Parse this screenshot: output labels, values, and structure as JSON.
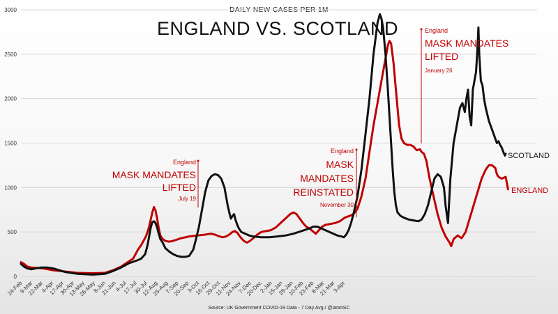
{
  "chart_data": {
    "type": "line",
    "subtitle": "DAILY NEW CASES PER 1M",
    "title": "ENGLAND VS. SCOTLAND",
    "source": "Source: UK Government COVID-19 Data - 7 Day Avg./ @ianmSC",
    "ylim": [
      0,
      3000
    ],
    "yticks": [
      "0",
      "500",
      "1000",
      "1500",
      "2000",
      "2500",
      "3000"
    ],
    "xticks": [
      "24-Feb",
      "9-Mar",
      "22-Mar",
      "4-Apr",
      "17-Apr",
      "30-Apr",
      "13-May",
      "26-May",
      "8-Jun",
      "21-Jun",
      "4-Jul",
      "17-Jul",
      "30-Jul",
      "12-Aug",
      "25-Aug",
      "7-Sep",
      "20-Sep",
      "3-Oct",
      "16-Oct",
      "29-Oct",
      "11-Nov",
      "24-Nov",
      "7-Dec",
      "20-Dec",
      "2-Jan",
      "15-Jan",
      "28-Jan",
      "10-Feb",
      "23-Feb",
      "8-Mar",
      "21-Mar",
      "3-Apr"
    ],
    "series": [
      {
        "name": "ENGLAND",
        "color": "#c00000",
        "points": [
          [
            0,
            160
          ],
          [
            4,
            140
          ],
          [
            8,
            110
          ],
          [
            13,
            100
          ],
          [
            20,
            95
          ],
          [
            28,
            90
          ],
          [
            40,
            70
          ],
          [
            55,
            55
          ],
          [
            70,
            40
          ],
          [
            90,
            35
          ],
          [
            105,
            40
          ],
          [
            115,
            70
          ],
          [
            125,
            110
          ],
          [
            130,
            140
          ],
          [
            135,
            170
          ],
          [
            140,
            200
          ],
          [
            143,
            250
          ],
          [
            146,
            300
          ],
          [
            150,
            350
          ],
          [
            153,
            400
          ],
          [
            156,
            450
          ],
          [
            158,
            500
          ],
          [
            160,
            560
          ],
          [
            162,
            640
          ],
          [
            164,
            720
          ],
          [
            166,
            780
          ],
          [
            168,
            740
          ],
          [
            170,
            650
          ],
          [
            172,
            540
          ],
          [
            174,
            460
          ],
          [
            177,
            420
          ],
          [
            180,
            400
          ],
          [
            185,
            390
          ],
          [
            190,
            400
          ],
          [
            200,
            430
          ],
          [
            210,
            450
          ],
          [
            220,
            460
          ],
          [
            230,
            470
          ],
          [
            237,
            480
          ],
          [
            242,
            470
          ],
          [
            248,
            450
          ],
          [
            252,
            440
          ],
          [
            256,
            450
          ],
          [
            260,
            470
          ],
          [
            264,
            500
          ],
          [
            267,
            510
          ],
          [
            270,
            490
          ],
          [
            274,
            440
          ],
          [
            278,
            400
          ],
          [
            282,
            380
          ],
          [
            286,
            400
          ],
          [
            290,
            430
          ],
          [
            295,
            470
          ],
          [
            300,
            500
          ],
          [
            306,
            510
          ],
          [
            312,
            520
          ],
          [
            318,
            550
          ],
          [
            324,
            600
          ],
          [
            330,
            650
          ],
          [
            336,
            700
          ],
          [
            340,
            720
          ],
          [
            344,
            700
          ],
          [
            348,
            650
          ],
          [
            352,
            600
          ],
          [
            356,
            560
          ],
          [
            360,
            540
          ],
          [
            364,
            510
          ],
          [
            368,
            480
          ],
          [
            372,
            520
          ],
          [
            376,
            560
          ],
          [
            380,
            580
          ],
          [
            386,
            590
          ],
          [
            392,
            600
          ],
          [
            398,
            620
          ],
          [
            404,
            660
          ],
          [
            410,
            680
          ],
          [
            415,
            700
          ],
          [
            420,
            760
          ],
          [
            425,
            900
          ],
          [
            430,
            1100
          ],
          [
            435,
            1400
          ],
          [
            440,
            1700
          ],
          [
            445,
            1950
          ],
          [
            450,
            2200
          ],
          [
            455,
            2450
          ],
          [
            458,
            2600
          ],
          [
            460,
            2650
          ],
          [
            462,
            2620
          ],
          [
            465,
            2400
          ],
          [
            468,
            2100
          ],
          [
            470,
            1900
          ],
          [
            472,
            1700
          ],
          [
            475,
            1550
          ],
          [
            478,
            1500
          ],
          [
            482,
            1480
          ],
          [
            486,
            1480
          ],
          [
            490,
            1460
          ],
          [
            494,
            1420
          ],
          [
            498,
            1430
          ],
          [
            500,
            1400
          ],
          [
            503,
            1380
          ],
          [
            506,
            1300
          ],
          [
            510,
            1100
          ],
          [
            515,
            900
          ],
          [
            520,
            700
          ],
          [
            525,
            550
          ],
          [
            530,
            450
          ],
          [
            535,
            380
          ],
          [
            537,
            340
          ],
          [
            540,
            420
          ],
          [
            545,
            460
          ],
          [
            550,
            430
          ],
          [
            555,
            500
          ],
          [
            560,
            650
          ],
          [
            565,
            800
          ],
          [
            570,
            950
          ],
          [
            575,
            1100
          ],
          [
            580,
            1200
          ],
          [
            584,
            1250
          ],
          [
            588,
            1250
          ],
          [
            592,
            1220
          ],
          [
            594,
            1150
          ],
          [
            596,
            1120
          ],
          [
            600,
            1100
          ],
          [
            605,
            1120
          ],
          [
            608,
            980
          ]
        ]
      },
      {
        "name": "SCOTLAND",
        "color": "#111111",
        "points": [
          [
            0,
            140
          ],
          [
            4,
            110
          ],
          [
            8,
            90
          ],
          [
            13,
            80
          ],
          [
            18,
            90
          ],
          [
            25,
            100
          ],
          [
            33,
            100
          ],
          [
            40,
            90
          ],
          [
            55,
            50
          ],
          [
            70,
            30
          ],
          [
            90,
            20
          ],
          [
            105,
            30
          ],
          [
            115,
            60
          ],
          [
            125,
            100
          ],
          [
            135,
            150
          ],
          [
            145,
            180
          ],
          [
            150,
            200
          ],
          [
            155,
            250
          ],
          [
            158,
            350
          ],
          [
            160,
            450
          ],
          [
            162,
            550
          ],
          [
            164,
            610
          ],
          [
            166,
            620
          ],
          [
            168,
            600
          ],
          [
            170,
            550
          ],
          [
            172,
            480
          ],
          [
            174,
            420
          ],
          [
            177,
            380
          ],
          [
            180,
            320
          ],
          [
            185,
            280
          ],
          [
            190,
            250
          ],
          [
            195,
            230
          ],
          [
            200,
            220
          ],
          [
            205,
            220
          ],
          [
            210,
            230
          ],
          [
            215,
            300
          ],
          [
            218,
            400
          ],
          [
            222,
            550
          ],
          [
            226,
            750
          ],
          [
            230,
            950
          ],
          [
            234,
            1080
          ],
          [
            238,
            1130
          ],
          [
            242,
            1150
          ],
          [
            246,
            1140
          ],
          [
            250,
            1100
          ],
          [
            254,
            1000
          ],
          [
            256,
            900
          ],
          [
            258,
            800
          ],
          [
            260,
            720
          ],
          [
            262,
            650
          ],
          [
            264,
            680
          ],
          [
            266,
            700
          ],
          [
            268,
            630
          ],
          [
            270,
            580
          ],
          [
            272,
            540
          ],
          [
            275,
            500
          ],
          [
            280,
            480
          ],
          [
            285,
            460
          ],
          [
            290,
            450
          ],
          [
            300,
            440
          ],
          [
            310,
            440
          ],
          [
            320,
            450
          ],
          [
            330,
            460
          ],
          [
            340,
            480
          ],
          [
            350,
            510
          ],
          [
            360,
            540
          ],
          [
            365,
            560
          ],
          [
            370,
            560
          ],
          [
            375,
            540
          ],
          [
            380,
            520
          ],
          [
            385,
            500
          ],
          [
            390,
            480
          ],
          [
            395,
            460
          ],
          [
            400,
            450
          ],
          [
            403,
            440
          ],
          [
            406,
            470
          ],
          [
            409,
            520
          ],
          [
            412,
            600
          ],
          [
            415,
            700
          ],
          [
            420,
            900
          ],
          [
            425,
            1200
          ],
          [
            430,
            1600
          ],
          [
            435,
            2000
          ],
          [
            440,
            2500
          ],
          [
            445,
            2850
          ],
          [
            448,
            2950
          ],
          [
            450,
            2900
          ],
          [
            452,
            2800
          ],
          [
            455,
            2500
          ],
          [
            458,
            2100
          ],
          [
            460,
            1800
          ],
          [
            462,
            1500
          ],
          [
            464,
            1200
          ],
          [
            466,
            950
          ],
          [
            468,
            800
          ],
          [
            470,
            720
          ],
          [
            474,
            680
          ],
          [
            478,
            660
          ],
          [
            484,
            640
          ],
          [
            490,
            630
          ],
          [
            496,
            620
          ],
          [
            500,
            640
          ],
          [
            504,
            700
          ],
          [
            508,
            800
          ],
          [
            512,
            950
          ],
          [
            516,
            1100
          ],
          [
            520,
            1150
          ],
          [
            524,
            1120
          ],
          [
            528,
            1000
          ],
          [
            530,
            800
          ],
          [
            533,
            600
          ],
          [
            536,
            1100
          ],
          [
            540,
            1500
          ],
          [
            544,
            1700
          ],
          [
            548,
            1900
          ],
          [
            551,
            1950
          ],
          [
            554,
            1850
          ],
          [
            556,
            2000
          ],
          [
            558,
            2100
          ],
          [
            560,
            1800
          ],
          [
            562,
            1700
          ],
          [
            564,
            2100
          ],
          [
            566,
            2200
          ],
          [
            568,
            2300
          ],
          [
            570,
            2600
          ],
          [
            571,
            2800
          ],
          [
            572,
            2500
          ],
          [
            574,
            2200
          ],
          [
            576,
            2150
          ],
          [
            578,
            2000
          ],
          [
            580,
            1900
          ],
          [
            584,
            1750
          ],
          [
            588,
            1650
          ],
          [
            592,
            1550
          ],
          [
            594,
            1500
          ],
          [
            596,
            1520
          ],
          [
            598,
            1480
          ],
          [
            600,
            1450
          ],
          [
            602,
            1400
          ],
          [
            604,
            1360
          ],
          [
            605,
            1380
          ]
        ]
      }
    ],
    "annotations": [
      {
        "country": "England",
        "lines": [
          "MASK MANDATES",
          "LIFTED"
        ],
        "date": "July 19"
      },
      {
        "country": "England",
        "lines": [
          "MASK",
          "MANDATES",
          "REINSTATED"
        ],
        "date": "November 30"
      },
      {
        "country": "England",
        "lines": [
          "MASK MANDATES",
          "LIFTED"
        ],
        "date": "January 26"
      }
    ]
  }
}
